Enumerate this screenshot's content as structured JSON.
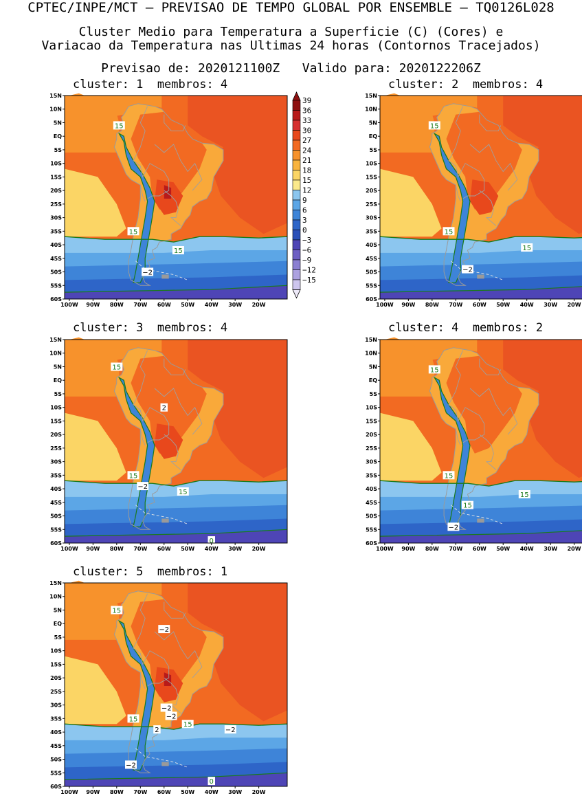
{
  "header": {
    "line1": "CPTEC/INPE/MCT – PREVISAO DE TEMPO GLOBAL POR ENSEMBLE – TQ0126L028",
    "line2": "Cluster Medio para Temperatura a Superficie (C) (Cores) e",
    "line3": "Variacao da Temperatura nas Ultimas 24 horas (Contornos Tracejados)",
    "line4": "Previsao de: 2020121100Z   Valido para: 2020122206Z"
  },
  "axes": {
    "lat_labels": [
      "15N",
      "10N",
      "5N",
      "EQ",
      "5S",
      "10S",
      "15S",
      "20S",
      "25S",
      "30S",
      "35S",
      "40S",
      "45S",
      "50S",
      "55S",
      "60S"
    ],
    "lon_labels": [
      "100W",
      "90W",
      "80W",
      "70W",
      "60W",
      "50W",
      "40W",
      "30W",
      "20W"
    ]
  },
  "colorbar": {
    "labels": [
      "39",
      "36",
      "33",
      "30",
      "27",
      "24",
      "21",
      "18",
      "15",
      "12",
      "9",
      "6",
      "3",
      "0",
      "−3",
      "−6",
      "−9",
      "−12",
      "−15"
    ],
    "colors": [
      "#8e1010",
      "#b81a1a",
      "#d63030",
      "#e8481c",
      "#f26a22",
      "#f7922c",
      "#f9b43e",
      "#fbd565",
      "#fbe98c",
      "#8cc6ef",
      "#5ca6e6",
      "#3e84d8",
      "#2e65c8",
      "#2a4fb8",
      "#4e45b6",
      "#6d5fc4",
      "#8b7fd2",
      "#aca1e0",
      "#cdc5ee",
      "#eeeaf9"
    ],
    "top_arrow_color": "#8e1010",
    "bottom_arrow_color": "#eeeaf9"
  },
  "panels": [
    {
      "title": "cluster: 1  membros: 4",
      "labels": [
        {
          "text": "15",
          "color": "#1a7a1a",
          "lon": -79,
          "lat": 4
        },
        {
          "text": "15",
          "color": "#1a7a1a",
          "lon": -73,
          "lat": -35
        },
        {
          "text": "15",
          "color": "#1a7a1a",
          "lon": -54,
          "lat": -42
        },
        {
          "text": "−2",
          "color": "#000000",
          "lon": -67,
          "lat": -50
        }
      ]
    },
    {
      "title": "cluster: 2  membros: 4",
      "labels": [
        {
          "text": "15",
          "color": "#1a7a1a",
          "lon": -79,
          "lat": 4
        },
        {
          "text": "15",
          "color": "#1a7a1a",
          "lon": -73,
          "lat": -35
        },
        {
          "text": "15",
          "color": "#1a7a1a",
          "lon": -40,
          "lat": -41
        },
        {
          "text": "−2",
          "color": "#000000",
          "lon": -65,
          "lat": -49
        }
      ]
    },
    {
      "title": "cluster: 3  membros: 4",
      "labels": [
        {
          "text": "15",
          "color": "#1a7a1a",
          "lon": -80,
          "lat": 5
        },
        {
          "text": "2",
          "color": "#000000",
          "lon": -60,
          "lat": -10
        },
        {
          "text": "15",
          "color": "#1a7a1a",
          "lon": -73,
          "lat": -35
        },
        {
          "text": "−2",
          "color": "#000000",
          "lon": -69,
          "lat": -39
        },
        {
          "text": "15",
          "color": "#1a7a1a",
          "lon": -52,
          "lat": -41
        },
        {
          "text": "0",
          "color": "#1a7a1a",
          "lon": -40,
          "lat": -59
        }
      ]
    },
    {
      "title": "cluster: 4  membros: 2",
      "labels": [
        {
          "text": "15",
          "color": "#1a7a1a",
          "lon": -79,
          "lat": 4
        },
        {
          "text": "15",
          "color": "#1a7a1a",
          "lon": -73,
          "lat": -35
        },
        {
          "text": "15",
          "color": "#1a7a1a",
          "lon": -41,
          "lat": -42
        },
        {
          "text": "15",
          "color": "#1a7a1a",
          "lon": -65,
          "lat": -46
        },
        {
          "text": "−2",
          "color": "#000000",
          "lon": -71,
          "lat": -54
        }
      ]
    },
    {
      "title": "cluster: 5  membros: 1",
      "labels": [
        {
          "text": "15",
          "color": "#1a7a1a",
          "lon": -80,
          "lat": 5
        },
        {
          "text": "−2",
          "color": "#000000",
          "lon": -60,
          "lat": -2
        },
        {
          "text": "−2",
          "color": "#000000",
          "lon": -59,
          "lat": -31
        },
        {
          "text": "−2",
          "color": "#000000",
          "lon": -57,
          "lat": -34
        },
        {
          "text": "15",
          "color": "#1a7a1a",
          "lon": -73,
          "lat": -35
        },
        {
          "text": "15",
          "color": "#1a7a1a",
          "lon": -50,
          "lat": -37
        },
        {
          "text": "−2",
          "color": "#000000",
          "lon": -32,
          "lat": -39
        },
        {
          "text": "2",
          "color": "#000000",
          "lon": -63,
          "lat": -39
        },
        {
          "text": "−2",
          "color": "#000000",
          "lon": -74,
          "lat": -52
        },
        {
          "text": "0",
          "color": "#1a7a1a",
          "lon": -40,
          "lat": -58
        }
      ]
    }
  ]
}
